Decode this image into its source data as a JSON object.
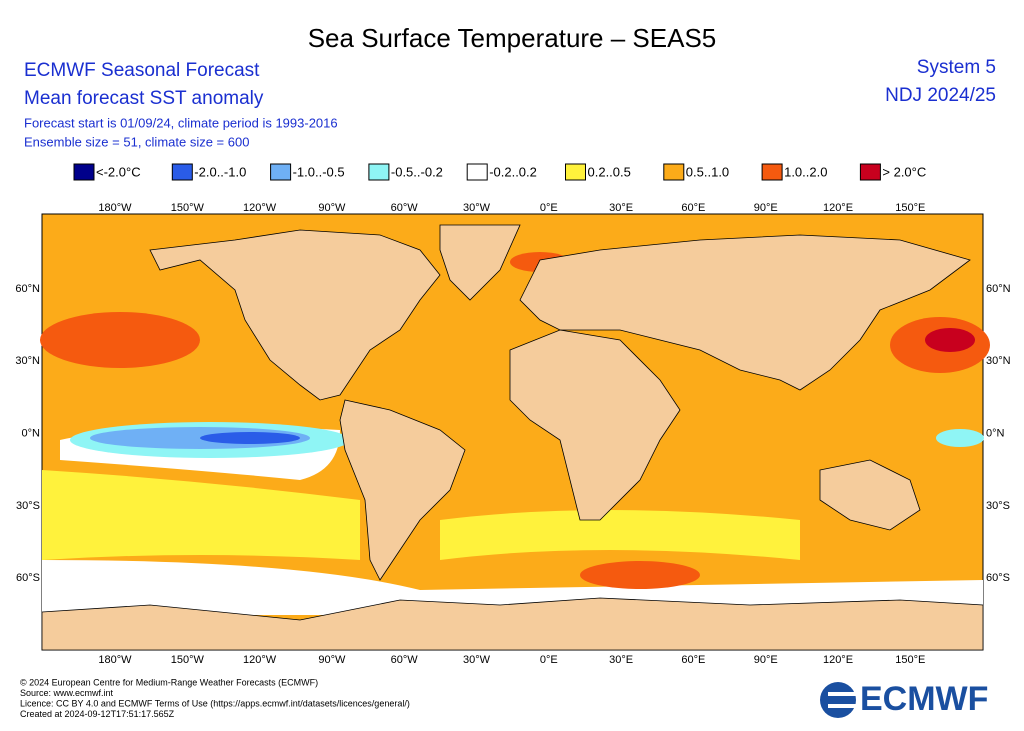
{
  "title": "Sea Surface Temperature – SEAS5",
  "header": {
    "left": [
      "ECMWF Seasonal Forecast",
      "Mean forecast SST anomaly"
    ],
    "details": [
      "Forecast start is 01/09/24, climate period is 1993-2016",
      "Ensemble size = 51, climate size = 600"
    ],
    "right": [
      "System 5",
      "NDJ 2024/25"
    ]
  },
  "legend": [
    {
      "label": "<-2.0°C",
      "color": "#00008b"
    },
    {
      "label": "-2.0..-1.0",
      "color": "#2a5ce8"
    },
    {
      "label": "-1.0..-0.5",
      "color": "#6fb0f5"
    },
    {
      "label": "-0.5..-0.2",
      "color": "#8ff5f5"
    },
    {
      "label": "-0.2..0.2",
      "color": "#ffffff"
    },
    {
      "label": "0.2..0.5",
      "color": "#fff23c"
    },
    {
      "label": "0.5..1.0",
      "color": "#fcab19"
    },
    {
      "label": "1.0..2.0",
      "color": "#f55a0f"
    },
    {
      "label": "> 2.0°C",
      "color": "#c8001e"
    }
  ],
  "map": {
    "lon_labels": [
      "180°W",
      "150°W",
      "120°W",
      "90°W",
      "60°W",
      "30°W",
      "0°E",
      "30°E",
      "60°E",
      "90°E",
      "120°E",
      "150°E"
    ],
    "lat_labels": [
      "60°N",
      "30°N",
      "0°N",
      "30°S",
      "60°S"
    ]
  },
  "footer": [
    "© 2024 European Centre for Medium-Range Weather Forecasts (ECMWF)",
    "Source: www.ecmwf.int",
    "Licence: CC BY 4.0 and ECMWF Terms of Use (https://apps.ecmwf.int/datasets/licences/general/)",
    "Created at 2024-09-12T17:51:17.565Z"
  ],
  "logo": "ECMWF"
}
